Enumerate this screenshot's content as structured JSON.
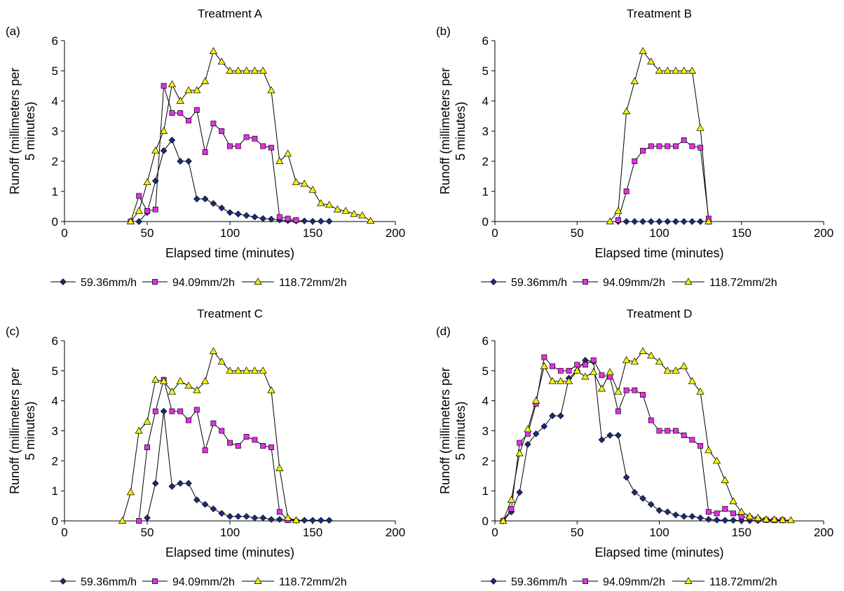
{
  "legend_labels": [
    "59.36mm/h",
    "94.09mm/2h",
    "118.72mm/2h"
  ],
  "series_styles": [
    {
      "marker": "diamond",
      "color": "#1b2a7a"
    },
    {
      "marker": "square",
      "color": "#e62ee6"
    },
    {
      "marker": "triangle",
      "color": "#f2f200"
    }
  ],
  "chart_data": [
    {
      "type": "line",
      "panel_label": "(a)",
      "title": "Treatment A",
      "xlabel": "Elapsed  time (minutes)",
      "ylabel": "Runoff (millimeters per 5 minutes)",
      "xlim": [
        0,
        200
      ],
      "ylim": [
        0,
        6
      ],
      "xticks": [
        0,
        50,
        100,
        150,
        200
      ],
      "yticks": [
        0,
        1,
        2,
        3,
        4,
        5,
        6
      ],
      "legend_position": "bottom",
      "series": [
        {
          "name": "59.36mm/h",
          "x": [
            45,
            50,
            55,
            60,
            65,
            70,
            75,
            80,
            85,
            90,
            95,
            100,
            105,
            110,
            115,
            120,
            125,
            130,
            135,
            140,
            145,
            150,
            155,
            160
          ],
          "y": [
            0,
            0.3,
            1.35,
            2.35,
            2.7,
            2.0,
            2.0,
            0.75,
            0.75,
            0.6,
            0.45,
            0.3,
            0.25,
            0.2,
            0.15,
            0.1,
            0.08,
            0.05,
            0.03,
            0.02,
            0.02,
            0.01,
            0.01,
            0.01
          ]
        },
        {
          "name": "94.09mm/2h",
          "x": [
            40,
            45,
            50,
            55,
            60,
            65,
            70,
            75,
            80,
            85,
            90,
            95,
            100,
            105,
            110,
            115,
            120,
            125,
            130,
            135,
            140
          ],
          "y": [
            0,
            0.85,
            0.35,
            0.4,
            4.5,
            3.6,
            3.6,
            3.35,
            3.7,
            2.3,
            3.25,
            3.0,
            2.5,
            2.5,
            2.8,
            2.75,
            2.5,
            2.45,
            0.15,
            0.1,
            0.05
          ]
        },
        {
          "name": "118.72mm/2h",
          "x": [
            40,
            45,
            50,
            55,
            60,
            65,
            70,
            75,
            80,
            85,
            90,
            95,
            100,
            105,
            110,
            115,
            120,
            125,
            130,
            135,
            140,
            145,
            150,
            155,
            160,
            165,
            170,
            175,
            180,
            185
          ],
          "y": [
            0,
            0.35,
            1.3,
            2.35,
            3.0,
            4.55,
            4.0,
            4.35,
            4.35,
            4.65,
            5.65,
            5.3,
            5.0,
            5.0,
            5.0,
            5.0,
            5.0,
            4.35,
            2.0,
            2.25,
            1.3,
            1.25,
            1.05,
            0.6,
            0.55,
            0.4,
            0.35,
            0.25,
            0.2,
            0.02
          ]
        }
      ]
    },
    {
      "type": "line",
      "panel_label": "(b)",
      "title": "Treatment B",
      "xlabel": "Elapsed time (minutes)",
      "ylabel": "Runoff (millimeters per 5 minutes)",
      "xlim": [
        0,
        200
      ],
      "ylim": [
        0,
        6
      ],
      "xticks": [
        0,
        50,
        100,
        150,
        200
      ],
      "yticks": [
        0,
        1,
        2,
        3,
        4,
        5,
        6
      ],
      "legend_position": "bottom",
      "series": [
        {
          "name": "59.36mm/h",
          "x": [
            75,
            80,
            85,
            90,
            95,
            100,
            105,
            110,
            115,
            120,
            125,
            130
          ],
          "y": [
            0,
            0,
            0,
            0,
            0,
            0,
            0,
            0,
            0,
            0,
            0,
            0
          ]
        },
        {
          "name": "94.09mm/2h",
          "x": [
            75,
            80,
            85,
            90,
            95,
            100,
            105,
            110,
            115,
            120,
            125,
            130
          ],
          "y": [
            0.05,
            1.0,
            2.0,
            2.35,
            2.5,
            2.5,
            2.5,
            2.5,
            2.7,
            2.5,
            2.45,
            0.1
          ]
        },
        {
          "name": "118.72mm/2h",
          "x": [
            70,
            75,
            80,
            85,
            90,
            95,
            100,
            105,
            110,
            115,
            120,
            125,
            130
          ],
          "y": [
            0,
            0.35,
            3.65,
            4.65,
            5.65,
            5.3,
            5.0,
            5.0,
            5.0,
            5.0,
            5.0,
            3.1,
            0
          ]
        }
      ]
    },
    {
      "type": "line",
      "panel_label": "(c)",
      "title": "Treatment C",
      "xlabel": "Elapsed time (minutes)",
      "ylabel": "Runoff (millimeters per 5 minutes)",
      "xlim": [
        0,
        200
      ],
      "ylim": [
        0,
        6
      ],
      "xticks": [
        0,
        50,
        100,
        150,
        200
      ],
      "yticks": [
        0,
        1,
        2,
        3,
        4,
        5,
        6
      ],
      "legend_position": "bottom",
      "series": [
        {
          "name": "59.36mm/h",
          "x": [
            50,
            55,
            60,
            65,
            70,
            75,
            80,
            85,
            90,
            95,
            100,
            105,
            110,
            115,
            120,
            125,
            130,
            135,
            140,
            145,
            150,
            155,
            160
          ],
          "y": [
            0.1,
            1.25,
            3.65,
            1.15,
            1.25,
            1.25,
            0.7,
            0.55,
            0.4,
            0.25,
            0.15,
            0.15,
            0.15,
            0.1,
            0.1,
            0.05,
            0.05,
            0.05,
            0.02,
            0.02,
            0.02,
            0.02,
            0.02
          ]
        },
        {
          "name": "94.09mm/2h",
          "x": [
            45,
            50,
            55,
            60,
            65,
            70,
            75,
            80,
            85,
            90,
            95,
            100,
            105,
            110,
            115,
            120,
            125,
            130,
            135
          ],
          "y": [
            0,
            2.45,
            3.65,
            4.7,
            3.65,
            3.65,
            3.35,
            3.7,
            2.35,
            3.25,
            3.0,
            2.6,
            2.5,
            2.8,
            2.7,
            2.5,
            2.45,
            0.3,
            0.02
          ]
        },
        {
          "name": "118.72mm/2h",
          "x": [
            35,
            40,
            45,
            50,
            55,
            60,
            65,
            70,
            75,
            80,
            85,
            90,
            95,
            100,
            105,
            110,
            115,
            120,
            125,
            130,
            135,
            140
          ],
          "y": [
            0,
            0.95,
            3.0,
            3.3,
            4.7,
            4.65,
            4.3,
            4.65,
            4.5,
            4.35,
            4.65,
            5.65,
            5.3,
            5.0,
            5.0,
            5.0,
            5.0,
            5.0,
            4.35,
            1.75,
            0.1,
            0.02
          ]
        }
      ]
    },
    {
      "type": "line",
      "panel_label": "(d)",
      "title": "Treatment D",
      "xlabel": "Elapsed time (minutes)",
      "ylabel": "Runoff (millimeters per 5 minutes)",
      "xlim": [
        0,
        200
      ],
      "ylim": [
        0,
        6
      ],
      "xticks": [
        0,
        50,
        100,
        150,
        200
      ],
      "yticks": [
        0,
        1,
        2,
        3,
        4,
        5,
        6
      ],
      "legend_position": "bottom",
      "series": [
        {
          "name": "59.36mm/h",
          "x": [
            5,
            10,
            15,
            20,
            25,
            30,
            35,
            40,
            45,
            50,
            55,
            60,
            65,
            70,
            75,
            80,
            85,
            90,
            95,
            100,
            105,
            110,
            115,
            120,
            125,
            130,
            135,
            140,
            145,
            150,
            155,
            160
          ],
          "y": [
            0,
            0.3,
            0.95,
            2.55,
            2.9,
            3.15,
            3.5,
            3.5,
            4.75,
            5.0,
            5.35,
            5.3,
            2.7,
            2.85,
            2.85,
            1.45,
            0.95,
            0.75,
            0.55,
            0.35,
            0.3,
            0.2,
            0.15,
            0.15,
            0.1,
            0.05,
            0.03,
            0.02,
            0.02,
            0.01,
            0.01,
            0.01
          ]
        },
        {
          "name": "94.09mm/2h",
          "x": [
            5,
            10,
            15,
            20,
            25,
            30,
            35,
            40,
            45,
            50,
            55,
            60,
            65,
            70,
            75,
            80,
            85,
            90,
            95,
            100,
            105,
            110,
            115,
            120,
            125,
            130,
            135,
            140,
            145,
            150,
            155,
            160,
            165,
            170,
            175
          ],
          "y": [
            0,
            0.4,
            2.6,
            2.9,
            3.9,
            5.45,
            5.15,
            5.0,
            5.0,
            5.2,
            5.2,
            5.35,
            4.85,
            4.8,
            3.65,
            4.35,
            4.35,
            4.2,
            3.35,
            3.0,
            3.0,
            3.0,
            2.85,
            2.7,
            2.5,
            0.3,
            0.25,
            0.4,
            0.25,
            0.15,
            0.1,
            0.05,
            0.03,
            0.02,
            0.02
          ]
        },
        {
          "name": "118.72mm/2h",
          "x": [
            5,
            10,
            15,
            20,
            25,
            30,
            35,
            40,
            45,
            50,
            55,
            60,
            65,
            70,
            75,
            80,
            85,
            90,
            95,
            100,
            105,
            110,
            115,
            120,
            125,
            130,
            135,
            140,
            145,
            150,
            155,
            160,
            165,
            170,
            175,
            180
          ],
          "y": [
            0,
            0.7,
            2.25,
            3.05,
            4.0,
            5.15,
            4.65,
            4.65,
            4.65,
            5.0,
            4.8,
            4.95,
            4.4,
            4.95,
            4.3,
            5.35,
            5.3,
            5.65,
            5.5,
            5.3,
            5.0,
            5.0,
            5.15,
            4.65,
            4.3,
            2.35,
            2.0,
            1.35,
            0.65,
            0.3,
            0.15,
            0.1,
            0.05,
            0.05,
            0.03,
            0.02
          ]
        }
      ]
    }
  ]
}
